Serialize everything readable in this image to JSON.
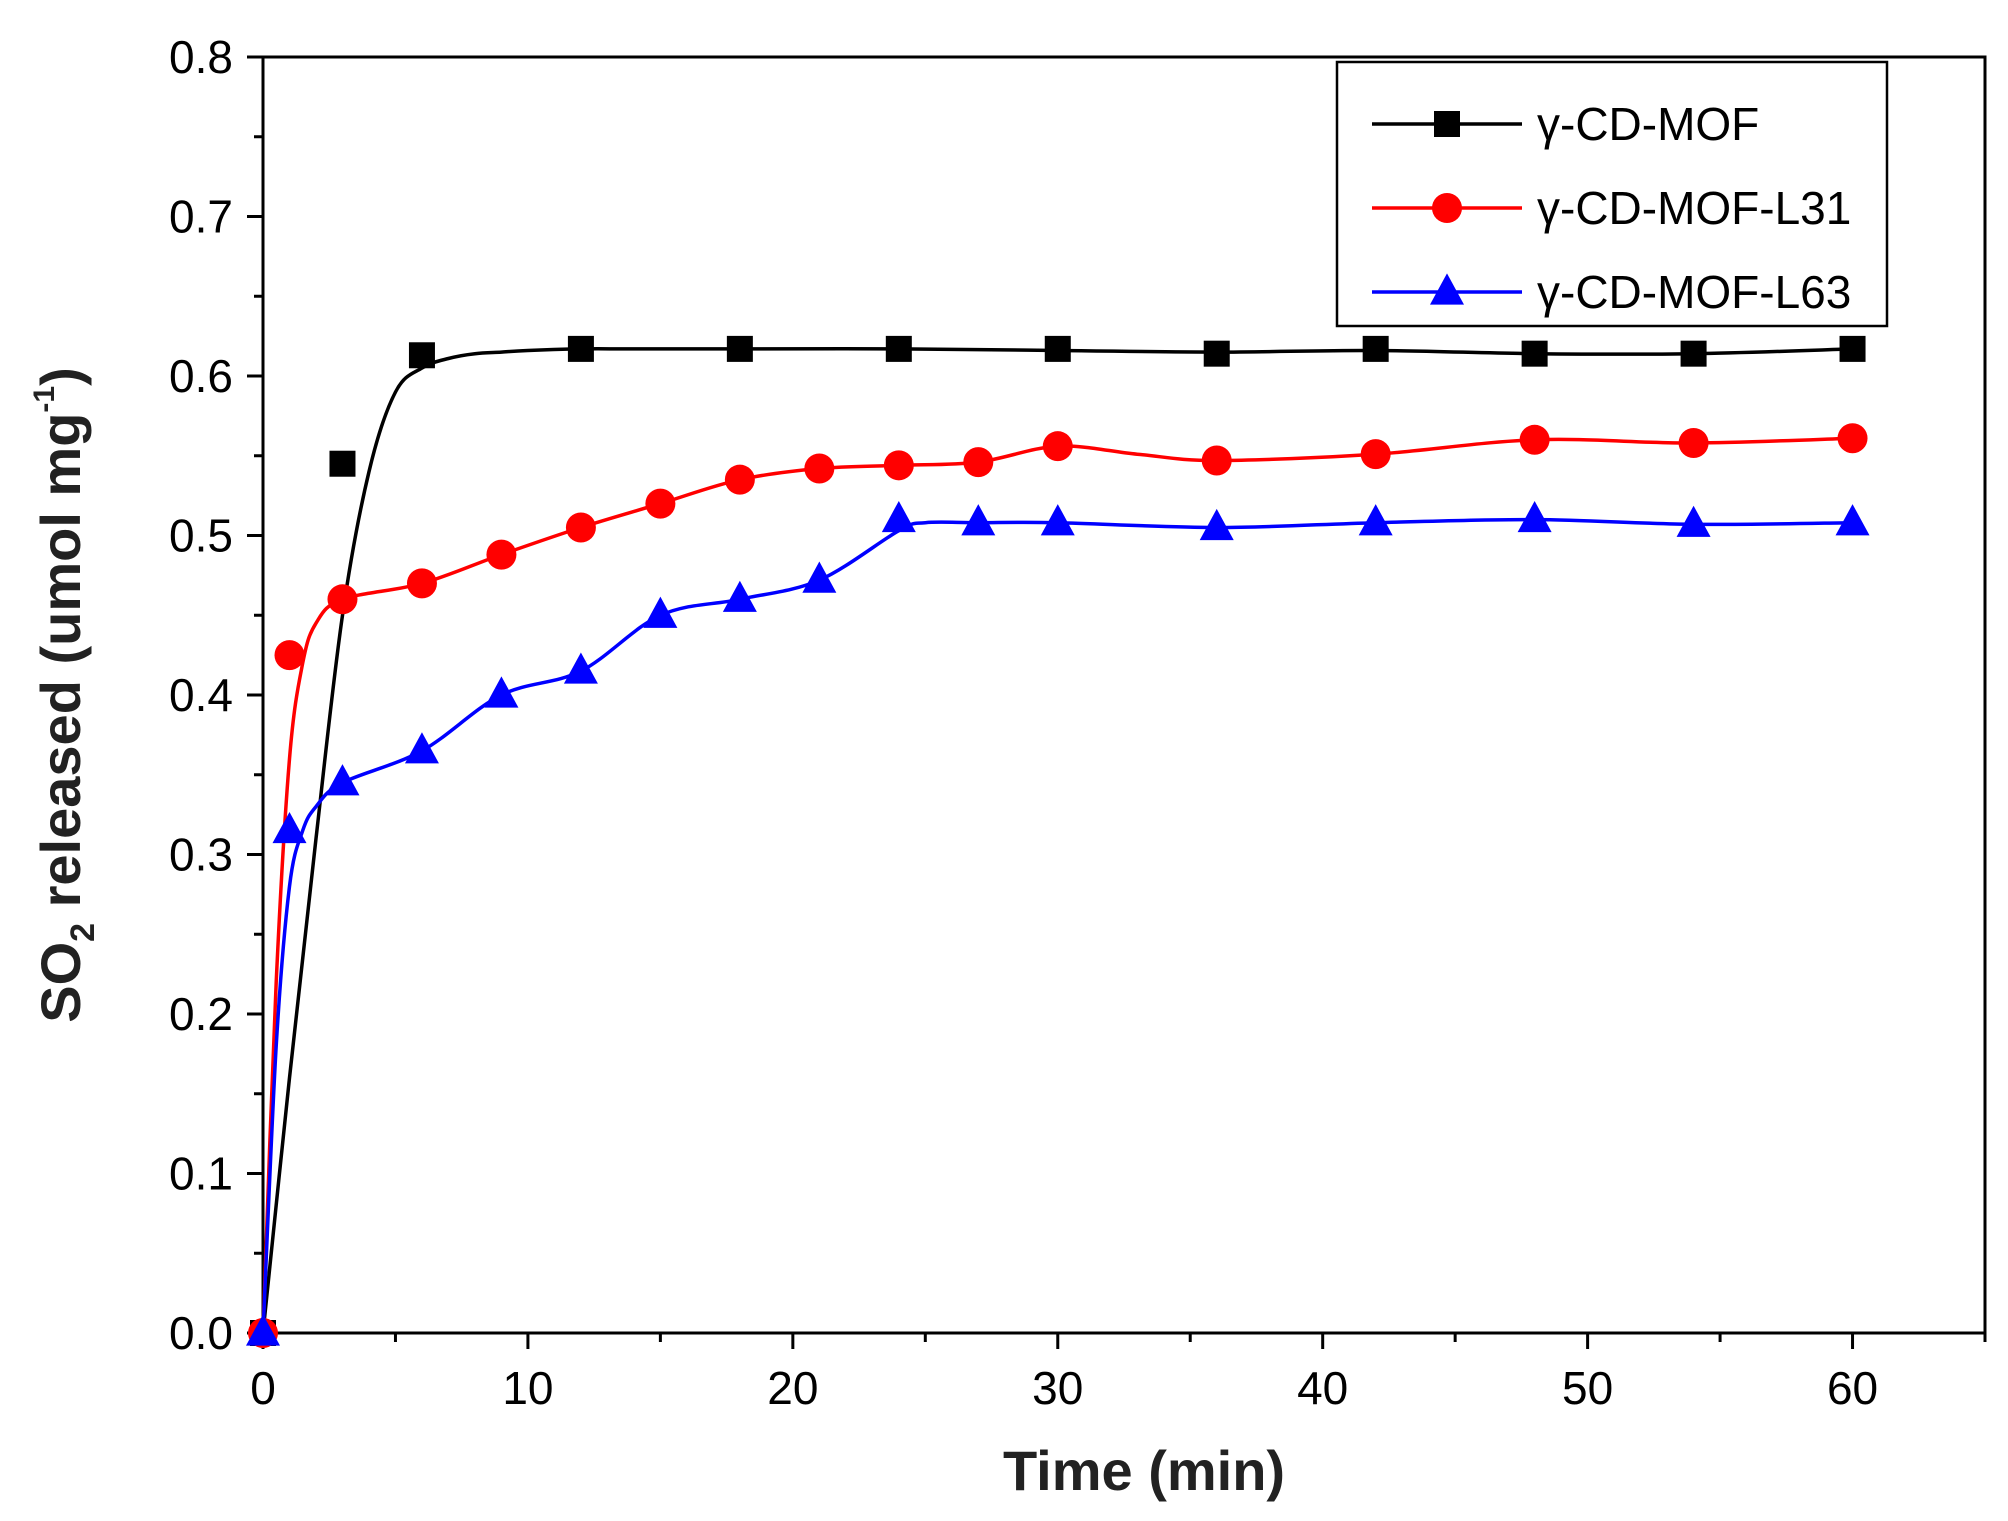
{
  "chart_data": {
    "type": "line",
    "title": "",
    "xlabel": "Time (min)",
    "ylabel_main": "SO",
    "ylabel_sub": "2",
    "ylabel_rest": " released (umol mg",
    "ylabel_sup": "-1",
    "ylabel_end": ")",
    "xlim": [
      0,
      65
    ],
    "ylim": [
      0,
      0.8
    ],
    "x_ticks": [
      0,
      10,
      20,
      30,
      40,
      50,
      60
    ],
    "x_tick_labels": [
      "0",
      "10",
      "20",
      "30",
      "40",
      "50",
      "60"
    ],
    "y_ticks": [
      0,
      0.1,
      0.2,
      0.3,
      0.4,
      0.5,
      0.6,
      0.7,
      0.8
    ],
    "y_tick_labels": [
      "0.0",
      "0.1",
      "0.2",
      "0.3",
      "0.4",
      "0.5",
      "0.6",
      "0.7",
      "0.8"
    ],
    "grid": false,
    "legend_position": "top-right",
    "series": [
      {
        "name": "γ-CD-MOF",
        "color": "#000000",
        "marker": "square",
        "x": [
          0,
          3,
          6,
          12,
          18,
          24,
          30,
          36,
          42,
          48,
          54,
          60
        ],
        "values": [
          0.0,
          0.545,
          0.613,
          0.617,
          0.617,
          0.617,
          0.617,
          0.614,
          0.617,
          0.614,
          0.614,
          0.617
        ],
        "curve_x": [
          0,
          1,
          2,
          3,
          4,
          5,
          6,
          7,
          8,
          9,
          10,
          12,
          14,
          18,
          24,
          30,
          36,
          42,
          48,
          54,
          60
        ],
        "curve_y": [
          0.0,
          0.16,
          0.31,
          0.45,
          0.54,
          0.59,
          0.605,
          0.611,
          0.614,
          0.615,
          0.616,
          0.617,
          0.617,
          0.617,
          0.617,
          0.616,
          0.615,
          0.616,
          0.614,
          0.614,
          0.617
        ]
      },
      {
        "name": "γ-CD-MOF-L31",
        "color": "#ff0000",
        "marker": "circle",
        "x": [
          0,
          1,
          3,
          6,
          9,
          12,
          15,
          18,
          21,
          24,
          27,
          30,
          36,
          42,
          48,
          54,
          60
        ],
        "values": [
          0.0,
          0.425,
          0.46,
          0.47,
          0.488,
          0.505,
          0.52,
          0.535,
          0.542,
          0.544,
          0.546,
          0.556,
          0.547,
          0.551,
          0.56,
          0.558,
          0.561
        ],
        "curve_x": [
          0,
          0.5,
          1,
          1.5,
          2,
          3,
          6,
          9,
          12,
          15,
          18,
          21,
          24,
          27,
          30,
          33,
          36,
          42,
          48,
          54,
          60
        ],
        "curve_y": [
          0.0,
          0.22,
          0.36,
          0.42,
          0.445,
          0.46,
          0.47,
          0.488,
          0.505,
          0.52,
          0.535,
          0.542,
          0.544,
          0.546,
          0.556,
          0.551,
          0.547,
          0.551,
          0.56,
          0.558,
          0.561
        ]
      },
      {
        "name": "γ-CD-MOF-L63",
        "color": "#0000ff",
        "marker": "triangle",
        "x": [
          0,
          1,
          3,
          6,
          9,
          12,
          15,
          18,
          21,
          24,
          27,
          30,
          36,
          42,
          48,
          54,
          60
        ],
        "values": [
          0.0,
          0.315,
          0.345,
          0.365,
          0.4,
          0.415,
          0.45,
          0.46,
          0.472,
          0.51,
          0.508,
          0.508,
          0.505,
          0.508,
          0.51,
          0.507,
          0.508
        ],
        "curve_x": [
          0,
          0.5,
          1,
          1.5,
          2,
          3,
          6,
          9,
          12,
          15,
          18,
          21,
          24,
          25,
          27,
          30,
          36,
          42,
          48,
          54,
          60
        ],
        "curve_y": [
          0.0,
          0.18,
          0.28,
          0.315,
          0.33,
          0.345,
          0.365,
          0.4,
          0.415,
          0.45,
          0.46,
          0.472,
          0.503,
          0.508,
          0.508,
          0.508,
          0.505,
          0.508,
          0.51,
          0.507,
          0.508
        ]
      }
    ]
  }
}
